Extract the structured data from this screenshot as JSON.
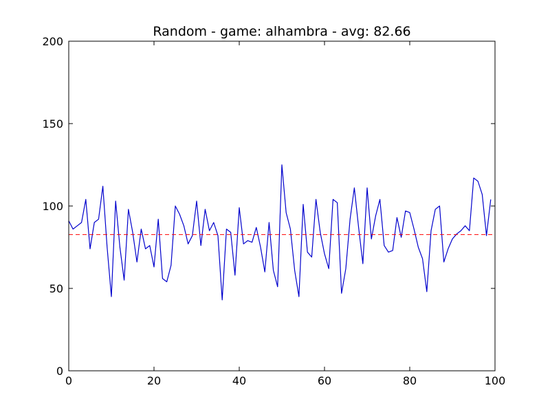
{
  "chart_data": {
    "type": "line",
    "title": "Random - game: alhambra - avg: 82.66",
    "xlabel": "",
    "ylabel": "",
    "xlim": [
      0,
      100
    ],
    "ylim": [
      0,
      200
    ],
    "xticks": [
      0,
      20,
      40,
      60,
      80,
      100
    ],
    "yticks": [
      0,
      50,
      100,
      150,
      200
    ],
    "xtick_labels": [
      "0",
      "20",
      "40",
      "60",
      "80",
      "100"
    ],
    "ytick_labels": [
      "0",
      "50",
      "100",
      "150",
      "200"
    ],
    "grid": false,
    "series": [
      {
        "color": "#0000cc",
        "x": [
          0,
          1,
          2,
          3,
          4,
          5,
          6,
          7,
          8,
          9,
          10,
          11,
          12,
          13,
          14,
          15,
          16,
          17,
          18,
          19,
          20,
          21,
          22,
          23,
          24,
          25,
          26,
          27,
          28,
          29,
          30,
          31,
          32,
          33,
          34,
          35,
          36,
          37,
          38,
          39,
          40,
          41,
          42,
          43,
          44,
          45,
          46,
          47,
          48,
          49,
          50,
          51,
          52,
          53,
          54,
          55,
          56,
          57,
          58,
          59,
          60,
          61,
          62,
          63,
          64,
          65,
          66,
          67,
          68,
          69,
          70,
          71,
          72,
          73,
          74,
          75,
          76,
          77,
          78,
          79,
          80,
          81,
          82,
          83,
          84,
          85,
          86,
          87,
          88,
          89,
          90,
          91,
          92,
          93,
          94,
          95,
          96,
          97,
          98,
          99
        ],
        "values": [
          91,
          86,
          88,
          90,
          104,
          74,
          90,
          92,
          112,
          75,
          45,
          103,
          75,
          55,
          98,
          84,
          66,
          86,
          74,
          76,
          63,
          92,
          56,
          54,
          64,
          100,
          95,
          88,
          77,
          82,
          103,
          76,
          98,
          85,
          90,
          82,
          43,
          86,
          84,
          58,
          99,
          77,
          79,
          78,
          87,
          75,
          60,
          90,
          61,
          51,
          125,
          96,
          86,
          61,
          45,
          101,
          72,
          69,
          104,
          84,
          71,
          62,
          104,
          102,
          47,
          62,
          92,
          111,
          87,
          65,
          111,
          80,
          94,
          104,
          76,
          72,
          73,
          93,
          81,
          97,
          96,
          86,
          75,
          68,
          48,
          85,
          98,
          100,
          66,
          74,
          80,
          83,
          85,
          88,
          85,
          117,
          115,
          107,
          82,
          104
        ]
      }
    ],
    "reference_lines": [
      {
        "orientation": "horizontal",
        "value": 82.66,
        "color": "#ff0000",
        "style": "dashed"
      }
    ]
  }
}
